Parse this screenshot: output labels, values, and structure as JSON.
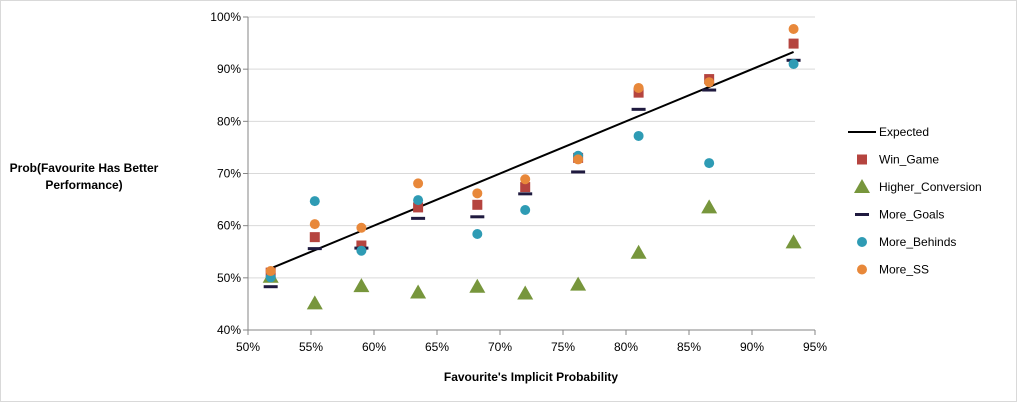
{
  "chart_data": {
    "type": "scatter",
    "title": "",
    "xlabel": "Favourite's Implicit Probability",
    "ylabel_lines": [
      "Prob(Favourite Has Better",
      "Performance)"
    ],
    "xlim": [
      0.5,
      0.95
    ],
    "ylim": [
      0.4,
      1.0
    ],
    "x_ticks": [
      0.5,
      0.55,
      0.6,
      0.65,
      0.7,
      0.75,
      0.8,
      0.85,
      0.9,
      0.95
    ],
    "x_tick_labels": [
      "50%",
      "55%",
      "60%",
      "65%",
      "70%",
      "75%",
      "80%",
      "85%",
      "90%",
      "95%"
    ],
    "y_ticks": [
      0.4,
      0.5,
      0.6,
      0.7,
      0.8,
      0.9,
      1.0
    ],
    "y_tick_labels": [
      "40%",
      "50%",
      "60%",
      "70%",
      "80%",
      "90%",
      "100%"
    ],
    "grid": {
      "x": false,
      "y": true
    },
    "legend_position": "right",
    "x": [
      0.518,
      0.553,
      0.59,
      0.635,
      0.682,
      0.72,
      0.762,
      0.81,
      0.866,
      0.933
    ],
    "series": [
      {
        "name": "Expected",
        "marker": "line",
        "color": "#000000",
        "values": [
          0.518,
          0.553,
          0.59,
          0.635,
          0.682,
          0.72,
          0.762,
          0.81,
          0.866,
          0.933
        ]
      },
      {
        "name": "Win_Game",
        "marker": "square",
        "color": "#b5443f",
        "values": [
          0.51,
          0.578,
          0.562,
          0.635,
          0.64,
          0.674,
          0.73,
          0.855,
          0.881,
          0.949
        ]
      },
      {
        "name": "Higher_Conversion",
        "marker": "triangle",
        "color": "#77963c",
        "values": [
          0.502,
          0.451,
          0.484,
          0.472,
          0.483,
          0.47,
          0.487,
          0.548,
          0.635,
          0.568
        ]
      },
      {
        "name": "More_Goals",
        "marker": "dash",
        "color": "#1f1a3f",
        "values": [
          0.483,
          0.556,
          0.557,
          0.614,
          0.617,
          0.661,
          0.703,
          0.823,
          0.86,
          0.917
        ]
      },
      {
        "name": "More_Behinds",
        "marker": "circle",
        "color": "#2e9bb4",
        "values": [
          0.501,
          0.647,
          0.552,
          0.649,
          0.584,
          0.63,
          0.734,
          0.772,
          0.72,
          0.91
        ]
      },
      {
        "name": "More_SS",
        "marker": "circle",
        "color": "#e8883a",
        "values": [
          0.513,
          0.603,
          0.596,
          0.681,
          0.662,
          0.689,
          0.727,
          0.864,
          0.875,
          0.977
        ]
      }
    ]
  }
}
